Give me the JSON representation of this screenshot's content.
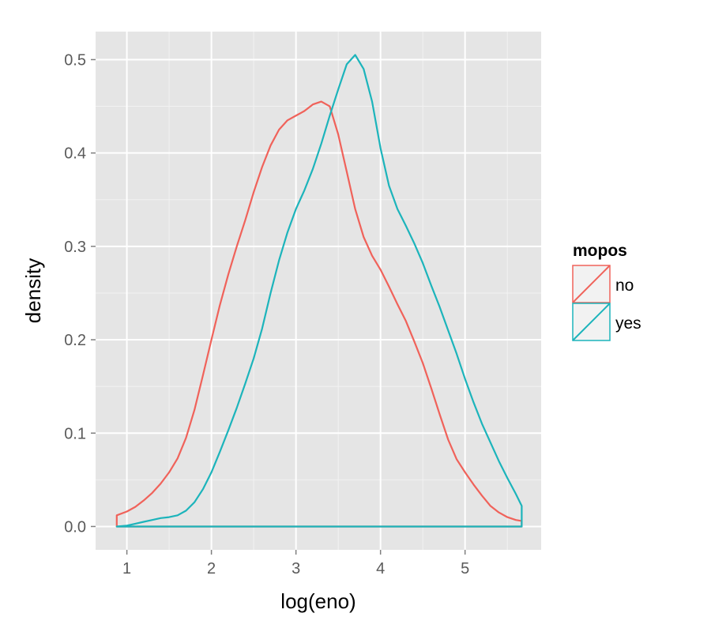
{
  "chart_data": {
    "type": "area",
    "xlabel": "log(eno)",
    "ylabel": "density",
    "xlim": [
      0.63,
      5.9
    ],
    "ylim": [
      -0.025,
      0.53
    ],
    "x_ticks": [
      1,
      2,
      3,
      4,
      5
    ],
    "y_ticks": [
      0.0,
      0.1,
      0.2,
      0.3,
      0.4,
      0.5
    ],
    "x_tick_labels": [
      "1",
      "2",
      "3",
      "4",
      "5"
    ],
    "y_tick_labels": [
      "0.0",
      "0.1",
      "0.2",
      "0.3",
      "0.4",
      "0.5"
    ],
    "grid": true,
    "legend_position": "right",
    "legend": {
      "title": "mopos",
      "entries": [
        "no",
        "yes"
      ]
    },
    "colors": {
      "panel": "#e5e5e5",
      "grid_major": "#ffffff",
      "grid_minor": "#f2f2f2"
    },
    "series": [
      {
        "name": "no",
        "color": "#f0625a",
        "x": [
          0.88,
          1.0,
          1.1,
          1.2,
          1.3,
          1.4,
          1.5,
          1.6,
          1.7,
          1.8,
          1.9,
          2.0,
          2.1,
          2.2,
          2.3,
          2.4,
          2.5,
          2.6,
          2.7,
          2.8,
          2.9,
          3.0,
          3.1,
          3.2,
          3.3,
          3.4,
          3.5,
          3.6,
          3.7,
          3.8,
          3.9,
          4.0,
          4.1,
          4.2,
          4.3,
          4.4,
          4.5,
          4.6,
          4.7,
          4.8,
          4.9,
          5.0,
          5.1,
          5.2,
          5.3,
          5.4,
          5.5,
          5.6,
          5.67
        ],
        "y": [
          0.012,
          0.016,
          0.021,
          0.028,
          0.036,
          0.046,
          0.058,
          0.073,
          0.095,
          0.125,
          0.162,
          0.2,
          0.237,
          0.27,
          0.3,
          0.328,
          0.358,
          0.385,
          0.408,
          0.425,
          0.435,
          0.44,
          0.445,
          0.452,
          0.455,
          0.45,
          0.42,
          0.38,
          0.34,
          0.31,
          0.29,
          0.275,
          0.257,
          0.238,
          0.22,
          0.198,
          0.175,
          0.148,
          0.12,
          0.093,
          0.072,
          0.058,
          0.045,
          0.033,
          0.022,
          0.015,
          0.01,
          0.007,
          0.006
        ]
      },
      {
        "name": "yes",
        "color": "#1cb4bb",
        "x": [
          0.88,
          1.0,
          1.1,
          1.2,
          1.3,
          1.4,
          1.5,
          1.6,
          1.7,
          1.8,
          1.9,
          2.0,
          2.1,
          2.2,
          2.3,
          2.4,
          2.5,
          2.6,
          2.7,
          2.8,
          2.9,
          3.0,
          3.1,
          3.2,
          3.3,
          3.4,
          3.5,
          3.6,
          3.7,
          3.8,
          3.9,
          4.0,
          4.1,
          4.2,
          4.3,
          4.4,
          4.5,
          4.6,
          4.7,
          4.8,
          4.9,
          5.0,
          5.1,
          5.2,
          5.3,
          5.4,
          5.5,
          5.6,
          5.67
        ],
        "y": [
          0.0,
          0.001,
          0.003,
          0.005,
          0.007,
          0.009,
          0.01,
          0.012,
          0.017,
          0.026,
          0.04,
          0.058,
          0.08,
          0.103,
          0.127,
          0.153,
          0.18,
          0.212,
          0.25,
          0.285,
          0.315,
          0.34,
          0.36,
          0.383,
          0.41,
          0.44,
          0.468,
          0.495,
          0.505,
          0.49,
          0.455,
          0.405,
          0.365,
          0.34,
          0.322,
          0.303,
          0.282,
          0.258,
          0.235,
          0.21,
          0.185,
          0.158,
          0.133,
          0.11,
          0.09,
          0.07,
          0.052,
          0.035,
          0.022
        ]
      }
    ]
  }
}
